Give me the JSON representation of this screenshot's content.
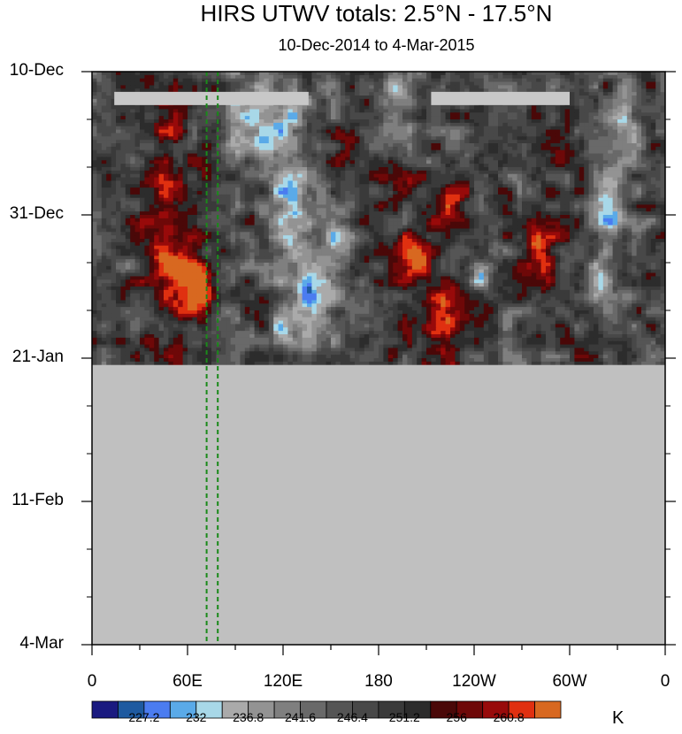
{
  "chart_data": {
    "type": "heatmap",
    "title": "HIRS UTWV totals: 2.5°N - 17.5°N",
    "subtitle": "10-Dec-2014 to 4-Mar-2015",
    "x_tick_labels": [
      "0",
      "60E",
      "120E",
      "180",
      "120W",
      "60W",
      "0"
    ],
    "x_ticks_deg": [
      0,
      60,
      120,
      180,
      240,
      300,
      360
    ],
    "xlim": [
      0,
      360
    ],
    "y_tick_labels": [
      "10-Dec",
      "31-Dec",
      "21-Jan",
      "11-Feb",
      "4-Mar"
    ],
    "y_ticks_days": [
      0,
      21,
      42,
      63,
      84
    ],
    "ylim": [
      "10-Dec-2014",
      "4-Mar-2015"
    ],
    "data_end": "22-Jan-2015",
    "missing_color": "#c0c0c0",
    "marker_lines_deg": [
      72,
      79
    ],
    "marker_line_color": "#1a8a1a",
    "colorbar": {
      "units": "K",
      "labels": [
        "227.2",
        "232",
        "236.8",
        "241.6",
        "246.4",
        "251.2",
        "256",
        "260.8"
      ],
      "colors": [
        "#1a1a80",
        "#1e5aa0",
        "#4b7cf0",
        "#5aaae8",
        "#a8d8e8",
        "#aaaaaa",
        "#939393",
        "#7f7f7f",
        "#696969",
        "#555555",
        "#484848",
        "#3a3a3a",
        "#2c2c2c",
        "#4a0808",
        "#6e0808",
        "#980a0a",
        "#e03010",
        "#d86820"
      ]
    },
    "features": [
      {
        "lon": 45,
        "day": 8,
        "value": 258,
        "sx": 10,
        "sy": 3
      },
      {
        "lon": 52,
        "day": 26,
        "value": 262,
        "sx": 13,
        "sy": 8
      },
      {
        "lon": 68,
        "day": 32,
        "value": 264,
        "sx": 6,
        "sy": 3
      },
      {
        "lon": 193,
        "day": 16,
        "value": 259,
        "sx": 8,
        "sy": 2.5
      },
      {
        "lon": 225,
        "day": 19,
        "value": 258,
        "sx": 12,
        "sy": 2.5
      },
      {
        "lon": 203,
        "day": 27,
        "value": 263,
        "sx": 11,
        "sy": 3
      },
      {
        "lon": 222,
        "day": 37,
        "value": 261,
        "sx": 12,
        "sy": 4
      },
      {
        "lon": 283,
        "day": 27,
        "value": 259,
        "sx": 8,
        "sy": 4
      },
      {
        "lon": 160,
        "day": 11,
        "value": 257,
        "sx": 8,
        "sy": 2
      },
      {
        "lon": 290,
        "day": 13,
        "value": 256,
        "sx": 5,
        "sy": 2
      },
      {
        "lon": 40,
        "day": 41,
        "value": 252,
        "sx": 12,
        "sy": 2
      },
      {
        "lon": 105,
        "day": 7,
        "value": 232,
        "sx": 14,
        "sy": 4
      },
      {
        "lon": 125,
        "day": 18,
        "value": 234,
        "sx": 9,
        "sy": 8
      },
      {
        "lon": 140,
        "day": 33,
        "value": 232,
        "sx": 10,
        "sy": 4
      },
      {
        "lon": 152,
        "day": 24,
        "value": 234,
        "sx": 6,
        "sy": 3
      },
      {
        "lon": 120,
        "day": 38,
        "value": 236,
        "sx": 5,
        "sy": 2
      },
      {
        "lon": 190,
        "day": 5,
        "value": 237,
        "sx": 10,
        "sy": 3
      },
      {
        "lon": 245,
        "day": 30,
        "value": 236,
        "sx": 6,
        "sy": 2
      },
      {
        "lon": 325,
        "day": 20,
        "value": 234,
        "sx": 6,
        "sy": 4
      },
      {
        "lon": 335,
        "day": 8,
        "value": 238,
        "sx": 8,
        "sy": 3
      },
      {
        "lon": 320,
        "day": 30,
        "value": 236,
        "sx": 6,
        "sy": 3
      }
    ],
    "base_value": 248,
    "gaps": [
      {
        "lon_start": 14,
        "lon_end": 136,
        "day": 4
      },
      {
        "lon_start": 213,
        "lon_end": 300,
        "day": 4
      }
    ]
  }
}
